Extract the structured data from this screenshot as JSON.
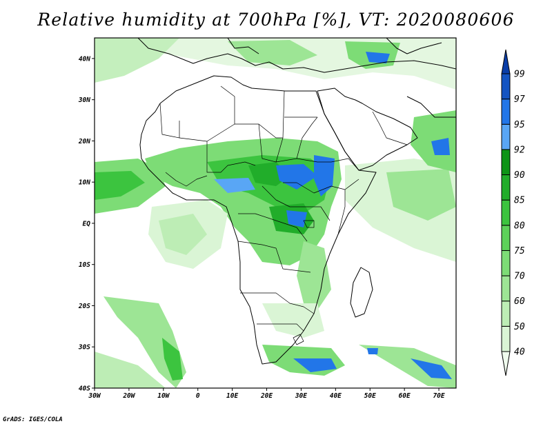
{
  "title": "Relative humidity at 700hPa [%], VT: 2020080606",
  "credit": "GrADS: IGES/COLA",
  "map": {
    "projection": "lat-lon",
    "lon_range": [
      -30,
      75
    ],
    "lat_range": [
      -40,
      45
    ],
    "lon_ticks": [
      {
        "value": -30,
        "label": "30W"
      },
      {
        "value": -20,
        "label": "20W"
      },
      {
        "value": -10,
        "label": "10W"
      },
      {
        "value": 0,
        "label": "0"
      },
      {
        "value": 10,
        "label": "10E"
      },
      {
        "value": 20,
        "label": "20E"
      },
      {
        "value": 30,
        "label": "30E"
      },
      {
        "value": 40,
        "label": "40E"
      },
      {
        "value": 50,
        "label": "50E"
      },
      {
        "value": 60,
        "label": "60E"
      },
      {
        "value": 70,
        "label": "70E"
      }
    ],
    "lat_ticks": [
      {
        "value": 40,
        "label": "40N"
      },
      {
        "value": 30,
        "label": "30N"
      },
      {
        "value": 20,
        "label": "20N"
      },
      {
        "value": 10,
        "label": "10N"
      },
      {
        "value": 0,
        "label": "EQ"
      },
      {
        "value": -10,
        "label": "10S"
      },
      {
        "value": -20,
        "label": "20S"
      },
      {
        "value": -30,
        "label": "30S"
      },
      {
        "value": -40,
        "label": "40S"
      }
    ]
  },
  "colorbar": {
    "levels": [
      "40",
      "50",
      "60",
      "70",
      "75",
      "80",
      "85",
      "90",
      "92",
      "95",
      "97",
      "99"
    ],
    "colors": [
      "#f0fcee",
      "#daf5d5",
      "#bdedb5",
      "#9de595",
      "#7ddc76",
      "#5dd15a",
      "#3cc43f",
      "#21ad2a",
      "#0e9416",
      "#59a6f5",
      "#2276e8",
      "#1454c2",
      "#0a3ea8"
    ]
  }
}
